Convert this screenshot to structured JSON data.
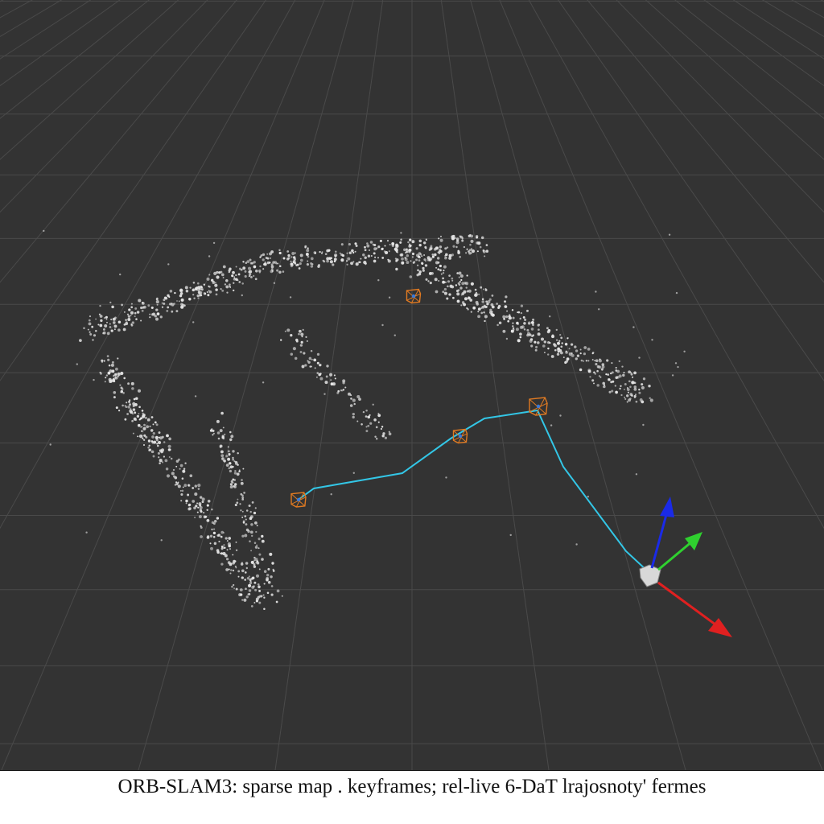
{
  "viewer": {
    "background": "#333333",
    "grid_color": "#4a4a4a",
    "point_color": "#e6e6e6",
    "trajectory_color": "#33c6e6",
    "keyframe_color": "#e07a22",
    "axes": {
      "x_color": "#e02020",
      "y_color": "#2fd02f",
      "z_color": "#1a2ae8"
    },
    "camera_color": "#d8d8d8"
  },
  "caption": {
    "text": "ORB-SLAM3: sparse map . keyframes; rel-live 6-DaT lrajosnoty' fermes"
  }
}
